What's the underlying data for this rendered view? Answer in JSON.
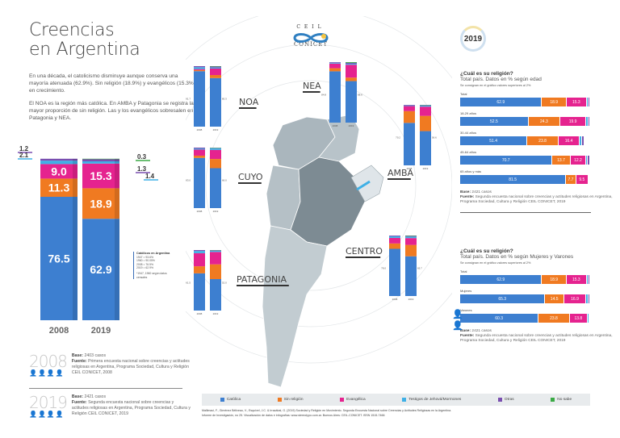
{
  "header": {
    "title_line1": "Creencias",
    "title_line2": "en Argentina",
    "intro_p1": "En una década, el catolicismo disminuye aunque conserva una mayoría atenuada (62.9%). Sin religión (18.9%) y evangélicos (15.3%) en crecimiento.",
    "intro_p2": "El NOA es la región más católica. En AMBA y Patagonia se registra la mayor proporción de sin religión. Las y los evangélicos sobresalen en Patagonia y NEA."
  },
  "logo": {
    "top": "CEIL",
    "bottom": "CONICET"
  },
  "colors": {
    "catolica": "#3d7fd0",
    "sin_religion": "#f07a21",
    "evangelica": "#e5238f",
    "testigos": "#3fb0e6",
    "otras": "#7a4fb0",
    "no_sabe": "#3aaa45"
  },
  "callout": {
    "title": "Católicos en Argentina",
    "lines": [
      "1947 = 93.6%",
      "1960 = 90.05%",
      "2008 = 76.5%",
      "2019 = 62.9%"
    ],
    "note": "*1947, 1960 según datos censales"
  },
  "bases": [
    {
      "year": "2008",
      "base_label": "Base:",
      "base_value": "2403 casos",
      "source_label": "Fuente:",
      "source_text": "Primera encuesta nacional sobre creencias y actitudes religiosas en Argentina, Programa Sociedad, Cultura y Religión CEIL CONICET, 2008"
    },
    {
      "year": "2019",
      "base_label": "Base:",
      "base_value": "2421 casos",
      "source_label": "Fuente:",
      "source_text": "Segunda encuesta nacional sobre creencias y actitudes religiosas en Argentina, Programa Sociedad, Cultura y Religión CEIL CONICET, 2019"
    }
  ],
  "right_panel": {
    "badge": "2019",
    "age": {
      "title": "¿Cuál es su religión?",
      "subtitle": "Total país. Datos en % según edad",
      "note": "Se consignan en el gráfico valores superiores al 2%"
    },
    "gender": {
      "title": "¿Cuál es su religión?",
      "subtitle": "Total país. Datos en % según Mujeres y Varones",
      "note": "Se consignan en el gráfico valores superiores al 2%"
    },
    "base_label": "Base:",
    "base_value": "2421 casos",
    "source_label": "Fuente:",
    "source_text": "Segunda encuesta nacional sobre creencias y actitudes religiosas en Argentina, Programa Sociedad, Cultura y Religión CEIL CONICET, 2019"
  },
  "legend": [
    {
      "key": "catolica",
      "label": "Católica"
    },
    {
      "key": "sin_religion",
      "label": "Sin religión"
    },
    {
      "key": "evangelica",
      "label": "Evangélica"
    },
    {
      "key": "testigos",
      "label": "Testigos de Jehová/Mormones"
    },
    {
      "key": "otras",
      "label": "Otras"
    },
    {
      "key": "no_sabe",
      "label": "No sabe"
    }
  ],
  "credits": {
    "line1": "Mallimaci, F., Giménez Béliveau, V., Esquivel, J.C. & Irrazábal, G. (2019) Sociedad y Religión en Movimiento. Segunda Encuesta Nacional sobre Creencias y Actitudes Religiosas en la Argentina.",
    "line2": "Informe de Investigación, no 25. Visualización de datos e infografías: www.stereotypo.com.ar. Buenos Aires: CEIL-CONICET. ISSN 1515-7466"
  },
  "chart_data": [
    {
      "type": "bar",
      "title": "Argentina total 2008 vs 2019 (stacked %)",
      "categories": [
        "2008",
        "2019"
      ],
      "series": [
        {
          "name": "Católica",
          "key": "catolica",
          "values": [
            76.5,
            62.9
          ]
        },
        {
          "name": "Sin religión",
          "key": "sin_religion",
          "values": [
            11.3,
            18.9
          ]
        },
        {
          "name": "Evangélica",
          "key": "evangelica",
          "values": [
            9.0,
            15.3
          ]
        },
        {
          "name": "Testigos de Jehová/Mormones",
          "key": "testigos",
          "values": [
            2.1,
            1.4
          ]
        },
        {
          "name": "Otras",
          "key": "otras",
          "values": [
            1.2,
            1.3
          ]
        },
        {
          "name": "No sabe",
          "key": "no_sabe",
          "values": [
            0,
            0.3
          ]
        }
      ]
    },
    {
      "type": "bar",
      "title": "Regiones 2008 vs 2019 (stacked %)",
      "categories": [
        "2008",
        "2019"
      ],
      "regions": [
        {
          "name": "NOA",
          "catolica": [
            91.7,
            80.3
          ],
          "sin_religion": [
            1.8,
            5.0
          ],
          "evangelica": [
            1.7,
            10.7
          ],
          "testigos": [
            3.1,
            1.7
          ],
          "otras": [
            1.7,
            1.6
          ],
          "no_sabe": [
            0,
            0.7
          ]
        },
        {
          "name": "NEA",
          "catolica": [
            84.8,
            68.6
          ],
          "sin_religion": [
            5.1,
            5.8
          ],
          "evangelica": [
            7.7,
            21.3
          ],
          "testigos": [
            1.4,
            1.6
          ],
          "otras": [
            1.0,
            1.5
          ],
          "no_sabe": [
            0,
            1.2
          ]
        },
        {
          "name": "AMBA",
          "catolica": [
            70.2,
            56.6
          ],
          "sin_religion": [
            19.5,
            25.2
          ],
          "evangelica": [
            8.3,
            15.3
          ],
          "testigos": [
            1.0,
            1.6
          ],
          "otras": [
            1.0,
            0.8
          ],
          "no_sabe": [
            0,
            0.5
          ]
        },
        {
          "name": "CUYO",
          "catolica": [
            83.0,
            66.0
          ],
          "sin_religion": [
            3.7,
            15.2
          ],
          "evangelica": [
            10.0,
            15.0
          ],
          "testigos": [
            1.8,
            2.8
          ],
          "otras": [
            1.5,
            0.5
          ],
          "no_sabe": [
            0,
            0.5
          ]
        },
        {
          "name": "PATAGONIA",
          "catolica": [
            61.5,
            52.0
          ],
          "sin_religion": [
            11.7,
            24.4
          ],
          "evangelica": [
            21.6,
            20.5
          ],
          "testigos": [
            3.7,
            1.8
          ],
          "otras": [
            1.5,
            0.8
          ],
          "no_sabe": [
            0,
            0.5
          ]
        },
        {
          "name": "CENTRO",
          "catolica": [
            78.0,
            65.7
          ],
          "sin_religion": [
            8.9,
            18.8
          ],
          "evangelica": [
            9.2,
            11.3
          ],
          "testigos": [
            2.7,
            2.5
          ],
          "otras": [
            1.2,
            1.0
          ],
          "no_sabe": [
            0,
            0.7
          ]
        }
      ]
    },
    {
      "type": "bar",
      "title": "¿Cuál es su religión? Total país según edad (2019, %)",
      "categories": [
        "Total",
        "18-29 años",
        "30-44 años",
        "45-64 años",
        "65 años y más"
      ],
      "series": [
        {
          "name": "Católica",
          "key": "catolica",
          "values": [
            62.9,
            52.5,
            51.4,
            70.7,
            81.5
          ]
        },
        {
          "name": "Sin religión",
          "key": "sin_religion",
          "values": [
            18.9,
            24.3,
            23.8,
            13.7,
            7.7
          ]
        },
        {
          "name": "Evangélica",
          "key": "evangelica",
          "values": [
            15.3,
            19.9,
            16.4,
            12.2,
            9.5
          ]
        },
        {
          "name": "Testigos de Jehová/Mormones",
          "key": "testigos",
          "values": [
            1.4,
            1.5,
            1.6,
            1.2,
            0.6
          ]
        },
        {
          "name": "Otras",
          "key": "otras",
          "values": [
            1.3,
            1.5,
            1.8,
            1.7,
            0.5
          ]
        },
        {
          "name": "No sabe",
          "key": "no_sabe",
          "values": [
            0.3,
            0.3,
            0.5,
            0.5,
            0.2
          ]
        }
      ]
    },
    {
      "type": "bar",
      "title": "¿Cuál es su religión? Total país según Mujeres y Varones (2019, %)",
      "categories": [
        "Total",
        "Mujeres",
        "Varones"
      ],
      "series": [
        {
          "name": "Católica",
          "key": "catolica",
          "values": [
            62.9,
            65.3,
            60.3
          ]
        },
        {
          "name": "Sin religión",
          "key": "sin_religion",
          "values": [
            18.9,
            14.5,
            23.8
          ]
        },
        {
          "name": "Evangélica",
          "key": "evangelica",
          "values": [
            15.3,
            16.9,
            13.8
          ]
        },
        {
          "name": "Testigos de Jehová/Mormones",
          "key": "testigos",
          "values": [
            1.4,
            1.6,
            1.2
          ]
        },
        {
          "name": "Otras",
          "key": "otras",
          "values": [
            1.3,
            1.4,
            0.7
          ]
        },
        {
          "name": "No sabe",
          "key": "no_sabe",
          "values": [
            0.3,
            0.3,
            0.2
          ]
        }
      ]
    }
  ]
}
